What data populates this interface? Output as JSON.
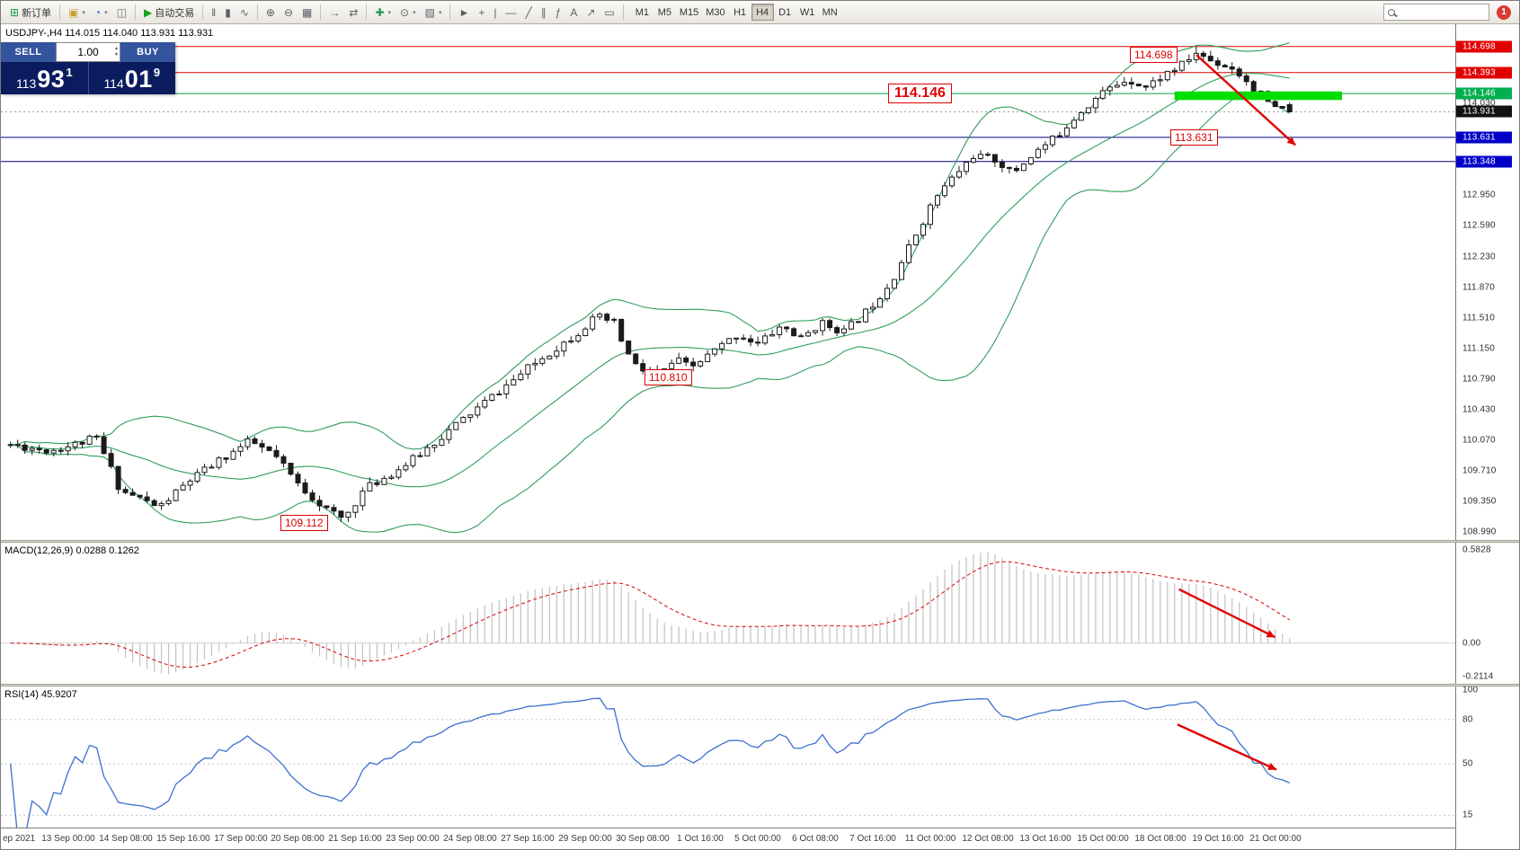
{
  "toolbar": {
    "groups": [
      [
        {
          "name": "new-order",
          "glyph": "⊞",
          "glyph_color": "#1e9b4e",
          "label": "新订单"
        }
      ],
      [
        {
          "name": "charts",
          "glyph": "▣",
          "glyph_color": "#c79c2e",
          "dd": true
        },
        {
          "name": "profiles",
          "glyph": "◔",
          "glyph_color": "#3a78c2",
          "dd": true
        },
        {
          "name": "market-watch",
          "glyph": "◫",
          "glyph_color": "#6b7075"
        }
      ],
      [
        {
          "name": "auto-trading",
          "glyph": "▶",
          "glyph_color": "#17a317",
          "label": "自动交易"
        }
      ],
      [
        {
          "name": "bar-chart",
          "glyph": "‖"
        },
        {
          "name": "candlestick-chart",
          "glyph": "▮"
        },
        {
          "name": "line-chart",
          "glyph": "∿"
        }
      ],
      [
        {
          "name": "zoom-in",
          "glyph": "⊕"
        },
        {
          "name": "zoom-out",
          "glyph": "⊖"
        },
        {
          "name": "tile-windows",
          "glyph": "▦"
        }
      ],
      [
        {
          "name": "auto-scroll",
          "glyph": "→"
        },
        {
          "name": "chart-shift",
          "glyph": "⇄"
        }
      ],
      [
        {
          "name": "indicators-add",
          "glyph": "✚",
          "glyph_color": "#1e9b4e",
          "dd": true
        },
        {
          "name": "periods",
          "glyph": "⊙",
          "dd": true
        },
        {
          "name": "templates",
          "glyph": "▨",
          "dd": true
        }
      ],
      [
        {
          "name": "cursor",
          "glyph": "►"
        },
        {
          "name": "crosshair",
          "glyph": "+"
        },
        {
          "name": "vertical-line",
          "glyph": "|"
        },
        {
          "name": "horizontal-line",
          "glyph": "—"
        },
        {
          "name": "trendline",
          "glyph": "╱"
        },
        {
          "name": "channel",
          "glyph": "∥"
        },
        {
          "name": "fibonacci",
          "glyph": "ƒ"
        },
        {
          "name": "text-tool",
          "glyph": "A"
        },
        {
          "name": "arrows-tool",
          "glyph": "↗"
        },
        {
          "name": "shapes-tool",
          "glyph": "▭"
        }
      ]
    ],
    "timeframes": {
      "items": [
        "M1",
        "M5",
        "M15",
        "M30",
        "H1",
        "H4",
        "D1",
        "W1",
        "MN"
      ],
      "active": "H4"
    },
    "search_placeholder": "",
    "badge": "1"
  },
  "chart": {
    "title": "USDJPY-,H4 114.015 114.040 113.931 113.931"
  },
  "trade_panel": {
    "sell_label": "SELL",
    "buy_label": "BUY",
    "lot_size": "1.00",
    "sell": {
      "prefix": "113",
      "big": "93",
      "sup": "1"
    },
    "buy": {
      "prefix": "114",
      "big": "01",
      "sup": "9"
    }
  },
  "colors": {
    "candle": "#1b1b1b",
    "band": "#2f9e5a",
    "highlight": "#00dd00",
    "arrow": "#e10000",
    "macd_hist": "#c2c2c2",
    "macd_signal": "#dd0000",
    "rsi": "#3d6fd0",
    "levels": {
      "red": {
        "line": "#e10000",
        "bg": "#e10000"
      },
      "green": {
        "line": "#00a04a",
        "bg": "#00b050"
      },
      "blue": {
        "line": "#000080",
        "bg": "#0000c8"
      },
      "current": {
        "line": "#999999",
        "bg": "#111111"
      }
    }
  },
  "chart_data": {
    "type": "candlestick",
    "symbol": "USDJPY-",
    "timeframe": "H4",
    "open": "114.015",
    "high": "114.040",
    "low": "113.931",
    "close": "113.931",
    "candle_count": 179,
    "seed": 11,
    "volatility": 0.095,
    "x_start": 0.0066,
    "x_end": 0.885,
    "price_axis": {
      "max": 114.96,
      "min": 108.9,
      "ticks": [
        "114.030",
        "112.950",
        "112.590",
        "112.230",
        "111.870",
        "111.510",
        "111.150",
        "110.790",
        "110.430",
        "110.070",
        "109.710",
        "109.350",
        "108.990"
      ]
    },
    "price_path": [
      [
        0,
        110.02
      ],
      [
        0.03,
        109.95
      ],
      [
        0.05,
        110.02
      ],
      [
        0.067,
        110.1
      ],
      [
        0.079,
        109.72
      ],
      [
        0.086,
        109.48
      ],
      [
        0.1,
        109.4
      ],
      [
        0.116,
        109.28
      ],
      [
        0.14,
        109.6
      ],
      [
        0.165,
        109.85
      ],
      [
        0.187,
        110.06
      ],
      [
        0.206,
        109.9
      ],
      [
        0.225,
        109.55
      ],
      [
        0.247,
        109.26
      ],
      [
        0.26,
        109.14
      ],
      [
        0.277,
        109.5
      ],
      [
        0.3,
        109.7
      ],
      [
        0.315,
        109.85
      ],
      [
        0.344,
        110.2
      ],
      [
        0.382,
        110.65
      ],
      [
        0.412,
        111.0
      ],
      [
        0.442,
        111.32
      ],
      [
        0.458,
        111.52
      ],
      [
        0.472,
        111.45
      ],
      [
        0.481,
        111.12
      ],
      [
        0.491,
        110.9
      ],
      [
        0.509,
        110.86
      ],
      [
        0.52,
        111.02
      ],
      [
        0.532,
        110.92
      ],
      [
        0.55,
        111.12
      ],
      [
        0.569,
        111.32
      ],
      [
        0.584,
        111.2
      ],
      [
        0.603,
        111.42
      ],
      [
        0.618,
        111.26
      ],
      [
        0.633,
        111.45
      ],
      [
        0.652,
        111.35
      ],
      [
        0.67,
        111.6
      ],
      [
        0.689,
        111.95
      ],
      [
        0.708,
        112.5
      ],
      [
        0.723,
        112.92
      ],
      [
        0.738,
        113.18
      ],
      [
        0.753,
        113.42
      ],
      [
        0.772,
        113.36
      ],
      [
        0.783,
        113.2
      ],
      [
        0.798,
        113.42
      ],
      [
        0.816,
        113.62
      ],
      [
        0.835,
        113.92
      ],
      [
        0.854,
        114.16
      ],
      [
        0.873,
        114.32
      ],
      [
        0.888,
        114.22
      ],
      [
        0.903,
        114.38
      ],
      [
        0.918,
        114.5
      ],
      [
        0.926,
        114.63
      ],
      [
        0.94,
        114.52
      ],
      [
        0.955,
        114.45
      ],
      [
        0.966,
        114.3
      ],
      [
        0.978,
        114.12
      ],
      [
        0.989,
        113.96
      ],
      [
        1,
        113.94
      ]
    ],
    "forces": [
      {
        "idx": 165,
        "field": "h",
        "value": 114.698
      },
      {
        "idx": 46,
        "field": "l",
        "value": 109.112
      }
    ],
    "last_candle": [
      114.015,
      114.04,
      113.931,
      113.931
    ],
    "bollinger": {
      "period": 20,
      "deviation": 2
    },
    "macd": {
      "label": "MACD(12,26,9) 0.0288 0.1262",
      "fast": 12,
      "slow": 26,
      "signal": 9,
      "scale_max": "0.5828",
      "scale_zero": "0.00",
      "scale_min": "-0.2114"
    },
    "rsi": {
      "label": "RSI(14) 45.9207",
      "period": 14,
      "levels": [
        80,
        50,
        15
      ],
      "scale_labels": [
        "100",
        "80",
        "50",
        "15"
      ]
    },
    "levels": [
      {
        "value": "114.698",
        "price": 114.698,
        "color": "red"
      },
      {
        "value": "114.393",
        "price": 114.393,
        "color": "red"
      },
      {
        "value": "114.146",
        "price": 114.146,
        "color": "green"
      },
      {
        "value": "113.931",
        "price": 113.931,
        "color": "current",
        "dashed": true
      },
      {
        "value": "113.631",
        "price": 113.631,
        "color": "blue"
      },
      {
        "value": "113.348",
        "price": 113.348,
        "color": "blue"
      }
    ],
    "time_labels": [
      {
        "label": "ep 2021",
        "left": true
      },
      {
        "label": "13 Sep 00:00",
        "idx": 8
      },
      {
        "label": "14 Sep 08:00",
        "idx": 16
      },
      {
        "label": "15 Sep 16:00",
        "idx": 24
      },
      {
        "label": "17 Sep 00:00",
        "idx": 32
      },
      {
        "label": "20 Sep 08:00",
        "idx": 40
      },
      {
        "label": "21 Sep 16:00",
        "idx": 48
      },
      {
        "label": "23 Sep 00:00",
        "idx": 56
      },
      {
        "label": "24 Sep 08:00",
        "idx": 64
      },
      {
        "label": "27 Sep 16:00",
        "idx": 72
      },
      {
        "label": "29 Sep 00:00",
        "idx": 80
      },
      {
        "label": "30 Sep 08:00",
        "idx": 88
      },
      {
        "label": "1 Oct 16:00",
        "idx": 96
      },
      {
        "label": "5 Oct 00:00",
        "idx": 104
      },
      {
        "label": "6 Oct 08:00",
        "idx": 112
      },
      {
        "label": "7 Oct 16:00",
        "idx": 120
      },
      {
        "label": "11 Oct 00:00",
        "idx": 128
      },
      {
        "label": "12 Oct 08:00",
        "idx": 136
      },
      {
        "label": "13 Oct 16:00",
        "idx": 144
      },
      {
        "label": "15 Oct 00:00",
        "idx": 152
      },
      {
        "label": "18 Oct 08:00",
        "idx": 160
      },
      {
        "label": "19 Oct 16:00",
        "idx": 168
      },
      {
        "label": "21 Oct 00:00",
        "idx": 176
      }
    ],
    "annotations": {
      "callouts": [
        {
          "text": "114.698",
          "x": 0.775,
          "price": 114.6
        },
        {
          "text": "114.146",
          "x": 0.609,
          "price": 114.146,
          "big": true
        },
        {
          "text": "113.631",
          "x": 0.803,
          "price": 113.63
        },
        {
          "text": "110.810",
          "x": 0.442,
          "price": 110.81
        },
        {
          "text": "109.112",
          "x": 0.192,
          "price": 109.1
        }
      ],
      "green_bar": {
        "x1": 0.806,
        "x2": 0.921,
        "price_top": 114.17,
        "price_bottom": 114.07
      },
      "main_arrow": {
        "x1": 0.821,
        "p1": 114.6,
        "x2": 0.889,
        "p2": 113.54
      },
      "macd_arrow": {
        "x1": 0.809,
        "y1": 0.33,
        "x2": 0.875,
        "y2": 0.67
      },
      "rsi_arrow": {
        "x1": 0.808,
        "y1": 0.27,
        "x2": 0.876,
        "y2": 0.59
      }
    }
  }
}
